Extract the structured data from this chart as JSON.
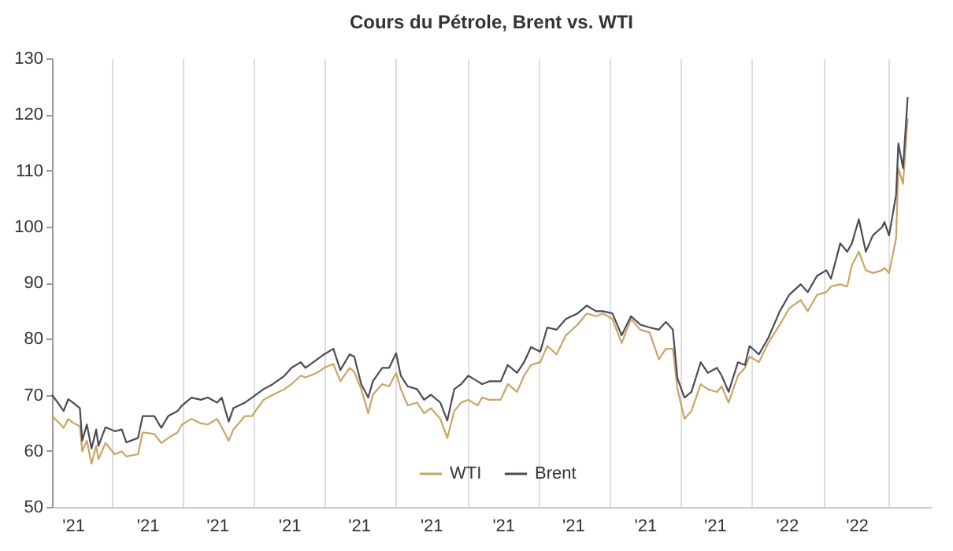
{
  "chart_data": {
    "type": "line",
    "title": "Cours du Pétrole, Brent vs. WTI",
    "x": [
      "2021-03-06",
      "2021-03-09",
      "2021-03-11",
      "2021-03-13",
      "2021-03-15",
      "2021-03-18",
      "2021-03-19",
      "2021-03-21",
      "2021-03-23",
      "2021-03-25",
      "2021-03-26",
      "2021-03-29",
      "2021-04-02",
      "2021-04-05",
      "2021-04-07",
      "2021-04-12",
      "2021-04-14",
      "2021-04-19",
      "2021-04-22",
      "2021-04-25",
      "2021-04-29",
      "2021-05-01",
      "2021-05-05",
      "2021-05-09",
      "2021-05-12",
      "2021-05-16",
      "2021-05-18",
      "2021-05-21",
      "2021-05-23",
      "2021-05-28",
      "2021-05-31",
      "2021-06-05",
      "2021-06-09",
      "2021-06-14",
      "2021-06-17",
      "2021-06-21",
      "2021-06-23",
      "2021-06-28",
      "2021-07-01",
      "2021-07-05",
      "2021-07-08",
      "2021-07-12",
      "2021-07-14",
      "2021-07-17",
      "2021-07-20",
      "2021-07-22",
      "2021-07-26",
      "2021-07-29",
      "2021-08-01",
      "2021-08-03",
      "2021-08-06",
      "2021-08-10",
      "2021-08-13",
      "2021-08-16",
      "2021-08-20",
      "2021-08-23",
      "2021-08-26",
      "2021-08-29",
      "2021-09-01",
      "2021-09-05",
      "2021-09-07",
      "2021-09-10",
      "2021-09-15",
      "2021-09-18",
      "2021-09-22",
      "2021-09-25",
      "2021-09-28",
      "2021-10-02",
      "2021-10-05",
      "2021-10-09",
      "2021-10-13",
      "2021-10-18",
      "2021-10-22",
      "2021-10-26",
      "2021-10-29",
      "2021-11-02",
      "2021-11-06",
      "2021-11-10",
      "2021-11-14",
      "2021-11-18",
      "2021-11-22",
      "2021-11-25",
      "2021-11-28",
      "2021-11-30",
      "2021-12-03",
      "2021-12-06",
      "2021-12-10",
      "2021-12-13",
      "2021-12-17",
      "2021-12-19",
      "2021-12-22",
      "2021-12-26",
      "2021-12-29",
      "2021-12-31",
      "2022-01-04",
      "2022-01-08",
      "2022-01-13",
      "2022-01-17",
      "2022-01-22",
      "2022-01-25",
      "2022-01-29",
      "2022-02-02",
      "2022-02-04",
      "2022-02-08",
      "2022-02-11",
      "2022-02-13",
      "2022-02-16",
      "2022-02-19",
      "2022-02-22",
      "2022-02-26",
      "2022-02-27",
      "2022-03-01",
      "2022-03-04",
      "2022-03-05",
      "2022-03-07",
      "2022-03-09"
    ],
    "series": [
      {
        "name": "WTI",
        "color": "#c9a465",
        "values": [
          66.2,
          65.0,
          64.1,
          65.7,
          65.0,
          64.4,
          59.9,
          61.8,
          57.7,
          60.9,
          58.5,
          61.4,
          59.4,
          59.9,
          59.0,
          59.4,
          63.3,
          63.0,
          61.4,
          62.3,
          63.3,
          64.7,
          65.7,
          64.9,
          64.7,
          65.7,
          64.2,
          61.8,
          63.8,
          66.2,
          66.2,
          69.1,
          70.0,
          71.0,
          71.9,
          73.4,
          73.1,
          73.9,
          74.8,
          75.5,
          72.4,
          74.8,
          74.1,
          71.0,
          66.7,
          70.0,
          71.9,
          71.5,
          73.9,
          71.0,
          68.1,
          68.6,
          66.7,
          67.6,
          65.7,
          62.3,
          67.1,
          68.6,
          69.1,
          68.1,
          69.5,
          69.1,
          69.1,
          71.9,
          70.5,
          73.4,
          75.3,
          75.8,
          78.7,
          77.2,
          80.6,
          82.5,
          84.5,
          84.0,
          84.5,
          83.5,
          79.2,
          83.5,
          81.6,
          81.1,
          76.3,
          78.2,
          78.2,
          71.0,
          65.7,
          67.1,
          71.9,
          71.0,
          70.5,
          71.5,
          68.6,
          73.4,
          74.8,
          76.8,
          75.8,
          79.2,
          82.5,
          85.4,
          86.9,
          84.9,
          87.8,
          88.3,
          89.3,
          89.7,
          89.3,
          93.1,
          95.5,
          92.2,
          91.7,
          92.2,
          92.6,
          91.7,
          97.9,
          110.4,
          107.6,
          119.3
        ]
      },
      {
        "name": "Brent",
        "color": "#4b4b57",
        "values": [
          70.0,
          68.3,
          67.1,
          69.2,
          68.6,
          67.6,
          61.8,
          64.7,
          60.4,
          63.8,
          60.9,
          64.2,
          63.5,
          63.8,
          61.5,
          62.3,
          66.2,
          66.2,
          64.1,
          66.2,
          67.1,
          68.1,
          69.5,
          69.1,
          69.5,
          68.6,
          69.5,
          65.2,
          67.6,
          68.6,
          69.5,
          71.0,
          71.9,
          73.4,
          74.8,
          75.8,
          74.8,
          76.3,
          77.2,
          78.2,
          74.4,
          77.2,
          76.8,
          71.9,
          69.5,
          72.4,
          74.8,
          74.8,
          77.4,
          73.4,
          71.5,
          71.0,
          69.1,
          70.0,
          68.6,
          65.4,
          71.0,
          71.9,
          73.4,
          72.4,
          71.9,
          72.4,
          72.4,
          75.3,
          73.9,
          75.8,
          78.5,
          77.7,
          82.0,
          81.6,
          83.5,
          84.5,
          85.9,
          84.9,
          84.9,
          84.5,
          80.6,
          84.0,
          82.5,
          82.0,
          81.6,
          83.0,
          81.6,
          72.9,
          69.5,
          70.5,
          75.8,
          73.9,
          74.8,
          73.4,
          70.5,
          75.8,
          75.3,
          78.7,
          77.2,
          80.1,
          84.9,
          87.8,
          89.7,
          88.3,
          91.2,
          92.2,
          90.7,
          97.0,
          95.5,
          97.0,
          101.3,
          95.5,
          98.4,
          99.9,
          100.8,
          98.4,
          105.6,
          114.8,
          110.4,
          123.1
        ]
      }
    ],
    "xlim": [
      "2021-03-06",
      "2022-03-19"
    ],
    "xticks": [
      {
        "value": "2021-03-15",
        "label": "'21"
      },
      {
        "value": "2021-04-01",
        "label": null
      },
      {
        "value": "2021-04-16",
        "label": "'21"
      },
      {
        "value": "2021-05-01",
        "label": null
      },
      {
        "value": "2021-05-16",
        "label": "'21"
      },
      {
        "value": "2021-06-01",
        "label": null
      },
      {
        "value": "2021-06-16",
        "label": "'21"
      },
      {
        "value": "2021-07-01",
        "label": null
      },
      {
        "value": "2021-07-16",
        "label": "'21"
      },
      {
        "value": "2021-08-01",
        "label": null
      },
      {
        "value": "2021-08-16",
        "label": "'21"
      },
      {
        "value": "2021-09-01",
        "label": null
      },
      {
        "value": "2021-09-16",
        "label": "'21"
      },
      {
        "value": "2021-10-01",
        "label": null
      },
      {
        "value": "2021-10-16",
        "label": "'21"
      },
      {
        "value": "2021-11-01",
        "label": null
      },
      {
        "value": "2021-11-16",
        "label": "'21"
      },
      {
        "value": "2021-12-01",
        "label": null
      },
      {
        "value": "2021-12-16",
        "label": "'21"
      },
      {
        "value": "2022-01-01",
        "label": null
      },
      {
        "value": "2022-01-16",
        "label": "'22"
      },
      {
        "value": "2022-02-01",
        "label": null
      },
      {
        "value": "2022-02-15",
        "label": "'22"
      },
      {
        "value": "2022-03-01",
        "label": null
      }
    ],
    "ylim": [
      50,
      130
    ],
    "yticks": [
      50,
      60,
      70,
      80,
      90,
      100,
      110,
      120,
      130
    ],
    "grid": "x",
    "legend": "bottom",
    "line_style": "solid",
    "marker": "none"
  }
}
